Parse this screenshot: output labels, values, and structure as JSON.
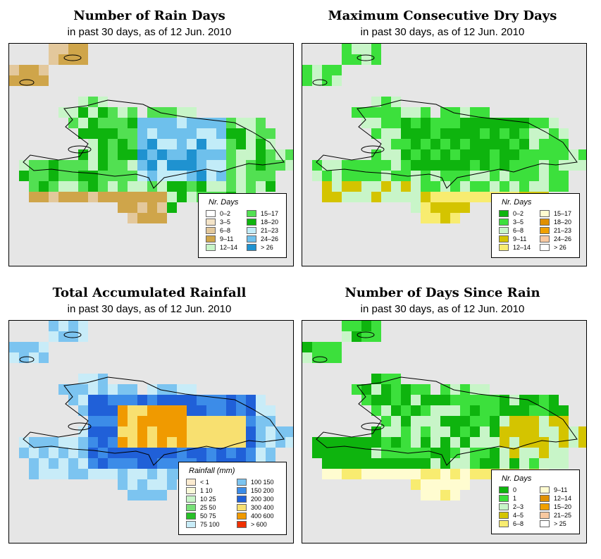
{
  "panels": [
    {
      "id": "rain-days",
      "title": "Number of Rain Days",
      "subtitle": "in past 30 days, as of  12 Jun. 2010",
      "legend": {
        "title": "Nr. Days",
        "classes": [
          {
            "label": "0–2",
            "color": "#ffffff"
          },
          {
            "label": "3–5",
            "color": "#f4e4c8"
          },
          {
            "label": "6–8",
            "color": "#e3c89c"
          },
          {
            "label": "9–11",
            "color": "#cfa54a"
          },
          {
            "label": "12–14",
            "color": "#c8f5c8"
          },
          {
            "label": "15–17",
            "color": "#52e052"
          },
          {
            "label": "18–20",
            "color": "#0eb40e"
          },
          {
            "label": "21–23",
            "color": "#c2ecf8"
          },
          {
            "label": "24–26",
            "color": "#6ec0ec"
          },
          {
            "label": "> 26",
            "color": "#1f92d0"
          }
        ]
      }
    },
    {
      "id": "dry-days",
      "title": "Maximum Consecutive Dry Days",
      "subtitle": "in past 30 days, as of  12 Jun. 2010",
      "legend": {
        "title": "Nr. Days",
        "classes": [
          {
            "label": "0–2",
            "color": "#0eb40e"
          },
          {
            "label": "3–5",
            "color": "#3ce03c"
          },
          {
            "label": "6–8",
            "color": "#c8f5c8"
          },
          {
            "label": "9–11",
            "color": "#d4c400"
          },
          {
            "label": "12–14",
            "color": "#f8ec70"
          },
          {
            "label": "15–17",
            "color": "#fffcd0"
          },
          {
            "label": "18–20",
            "color": "#e09000"
          },
          {
            "label": "21–23",
            "color": "#f0a000"
          },
          {
            "label": "24–26",
            "color": "#f8c8a0"
          },
          {
            "label": "> 26",
            "color": "#ffffff"
          }
        ]
      }
    },
    {
      "id": "rainfall",
      "title": "Total Accumulated Rainfall",
      "subtitle": "in past 30 days, as of  12 Jun. 2010",
      "legend": {
        "title": "Rainfall (mm)",
        "classes": [
          {
            "label": "< 1",
            "color": "#fcebd0"
          },
          {
            "label": "1   10",
            "color": "#f8f8d8"
          },
          {
            "label": "10   25",
            "color": "#c8f5c8"
          },
          {
            "label": "25   50",
            "color": "#78e078"
          },
          {
            "label": "50   75",
            "color": "#28c028"
          },
          {
            "label": "75  100",
            "color": "#c8ecf8"
          },
          {
            "label": "100  150",
            "color": "#7cc4f0"
          },
          {
            "label": "150  200",
            "color": "#3c8ce8"
          },
          {
            "label": "200  300",
            "color": "#2060d8"
          },
          {
            "label": "300  400",
            "color": "#f8e070"
          },
          {
            "label": "400  600",
            "color": "#f09a00"
          },
          {
            "label": "> 600",
            "color": "#f03000"
          }
        ]
      }
    },
    {
      "id": "since-rain",
      "title": "Number of Days Since Rain",
      "subtitle": "in past 30 days, as of  12 Jun. 2010",
      "legend": {
        "title": "Nr. Days",
        "classes": [
          {
            "label": "0",
            "color": "#0eb40e"
          },
          {
            "label": "1",
            "color": "#3ce03c"
          },
          {
            "label": "2–3",
            "color": "#c8f5c8"
          },
          {
            "label": "4–5",
            "color": "#d4c400"
          },
          {
            "label": "6–8",
            "color": "#f8ec70"
          },
          {
            "label": "9–11",
            "color": "#fffcd0"
          },
          {
            "label": "12–14",
            "color": "#e09000"
          },
          {
            "label": "15–20",
            "color": "#f0a000"
          },
          {
            "label": "21–25",
            "color": "#f8c8a0"
          },
          {
            "label": "> 25",
            "color": "#ffffff"
          }
        ]
      }
    }
  ]
}
